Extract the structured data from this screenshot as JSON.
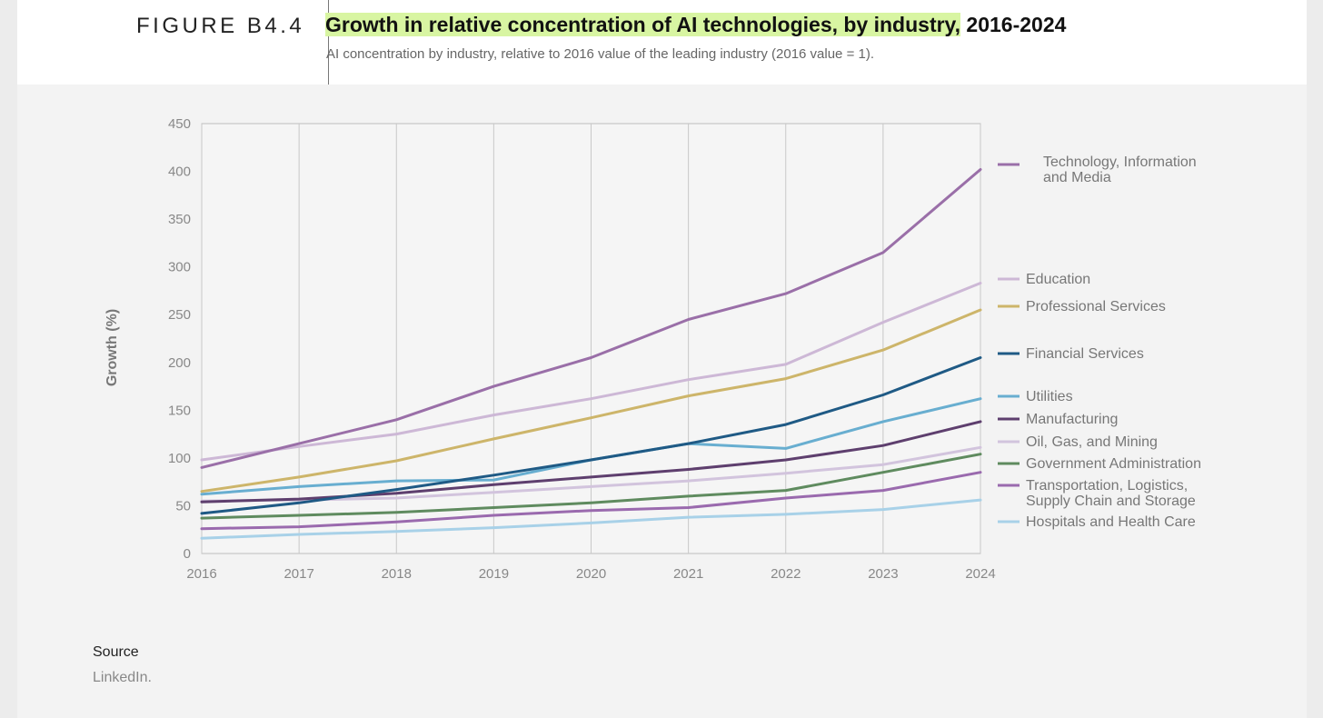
{
  "header": {
    "figure_label": "FIGURE B4.4",
    "title_highlight": "Growth in relative concentration of AI technologies, by industry,",
    "title_rest": " 2016-2024",
    "subtitle": "AI concentration by industry, relative to 2016 value of the leading industry (2016 value = 1)."
  },
  "source": {
    "label": "Source",
    "text": "LinkedIn."
  },
  "chart_data": {
    "type": "line",
    "x": [
      2016,
      2017,
      2018,
      2019,
      2020,
      2021,
      2022,
      2023,
      2024
    ],
    "ylabel": "Growth (%)",
    "xlabel": "",
    "ylim": [
      0,
      450
    ],
    "yticks": [
      0,
      50,
      100,
      150,
      200,
      250,
      300,
      350,
      400,
      450
    ],
    "grid": "vertical",
    "legend_position": "right",
    "series": [
      {
        "name": "Technology, Information and Media",
        "color": "#9a6fa8",
        "values": [
          90,
          115,
          140,
          175,
          205,
          245,
          272,
          315,
          402
        ]
      },
      {
        "name": "Education",
        "color": "#cdb8d6",
        "values": [
          98,
          112,
          125,
          145,
          162,
          182,
          198,
          242,
          283
        ]
      },
      {
        "name": "Professional Services",
        "color": "#cdb56a",
        "values": [
          65,
          80,
          97,
          120,
          142,
          165,
          183,
          213,
          255
        ]
      },
      {
        "name": "Financial Services",
        "color": "#1f5a85",
        "values": [
          42,
          53,
          67,
          82,
          98,
          115,
          135,
          166,
          205
        ]
      },
      {
        "name": "Utilities",
        "color": "#68aed0",
        "values": [
          62,
          70,
          76,
          77,
          98,
          115,
          110,
          138,
          162
        ]
      },
      {
        "name": "Manufacturing",
        "color": "#5e3f6e",
        "values": [
          54,
          57,
          63,
          72,
          80,
          88,
          98,
          113,
          138
        ]
      },
      {
        "name": "Oil, Gas, and Mining",
        "color": "#d2c4dd",
        "values": [
          55,
          56,
          58,
          64,
          70,
          76,
          84,
          93,
          111
        ]
      },
      {
        "name": "Government Administration",
        "color": "#5f8b5f",
        "values": [
          37,
          40,
          43,
          48,
          53,
          60,
          66,
          85,
          104
        ]
      },
      {
        "name": "Transportation, Logistics, Supply Chain and Storage",
        "color": "#9a6aae",
        "values": [
          26,
          28,
          33,
          40,
          45,
          48,
          58,
          66,
          85
        ]
      },
      {
        "name": "Hospitals and Health Care",
        "color": "#a8d1e8",
        "values": [
          16,
          20,
          23,
          27,
          32,
          38,
          41,
          46,
          56
        ]
      }
    ],
    "legend_lines": [
      [
        "Technology, Information",
        "and Media"
      ],
      [
        "Education"
      ],
      [
        "Professional Services"
      ],
      [
        "Financial Services"
      ],
      [
        "Utilities"
      ],
      [
        "Manufacturing"
      ],
      [
        "Oil, Gas, and Mining"
      ],
      [
        "Government Administration"
      ],
      [
        "Transportation, Logistics,",
        "Supply Chain and Storage"
      ],
      [
        "Hospitals and Health Care"
      ]
    ]
  }
}
